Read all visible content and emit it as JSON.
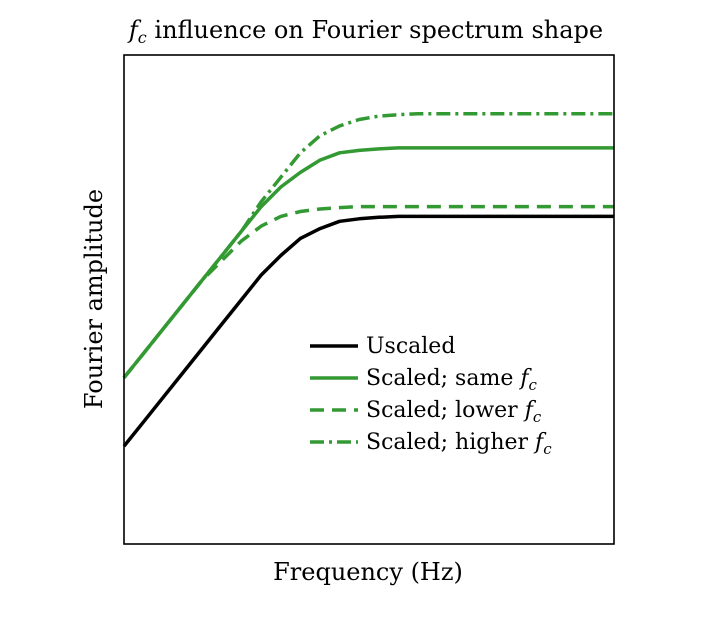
{
  "colors": {
    "black": "#000000",
    "green": "#339933"
  },
  "chart_data": {
    "type": "line",
    "title_symbol": "f",
    "title_subscript": "c",
    "title_rest": " influence on Fourier spectrum shape",
    "xlabel": "Frequency (Hz)",
    "ylabel": "Fourier amplitude",
    "x_ticks_shown": false,
    "y_ticks_shown": false,
    "grid": false,
    "legend_position": "center-right",
    "x": [
      0,
      0.04,
      0.08,
      0.12,
      0.16,
      0.2,
      0.24,
      0.28,
      0.32,
      0.36,
      0.4,
      0.44,
      0.48,
      0.52,
      0.56,
      0.6,
      0.64,
      0.68,
      0.72,
      0.76,
      0.8,
      0.84,
      0.88,
      0.92,
      0.96,
      1.0
    ],
    "series": [
      {
        "name": "Uscaled",
        "name_symbol": "",
        "name_subscript": "",
        "color": "#000000",
        "dash": "solid",
        "values": [
          0.2,
          0.25,
          0.3,
          0.35,
          0.4,
          0.45,
          0.5,
          0.55,
          0.59,
          0.625,
          0.645,
          0.66,
          0.665,
          0.668,
          0.67,
          0.67,
          0.67,
          0.67,
          0.67,
          0.67,
          0.67,
          0.67,
          0.67,
          0.67,
          0.67,
          0.67
        ]
      },
      {
        "name": "Scaled; same ",
        "name_symbol": "f",
        "name_subscript": "c",
        "color": "#339933",
        "dash": "solid",
        "values": [
          0.34,
          0.39,
          0.44,
          0.49,
          0.54,
          0.59,
          0.64,
          0.69,
          0.73,
          0.76,
          0.785,
          0.8,
          0.805,
          0.808,
          0.81,
          0.81,
          0.81,
          0.81,
          0.81,
          0.81,
          0.81,
          0.81,
          0.81,
          0.81,
          0.81,
          0.81
        ]
      },
      {
        "name": "Scaled; lower ",
        "name_symbol": "f",
        "name_subscript": "c",
        "color": "#339933",
        "dash": "dashed",
        "values": [
          0.34,
          0.39,
          0.44,
          0.49,
          0.54,
          0.58,
          0.62,
          0.65,
          0.67,
          0.68,
          0.685,
          0.688,
          0.69,
          0.69,
          0.69,
          0.69,
          0.69,
          0.69,
          0.69,
          0.69,
          0.69,
          0.69,
          0.69,
          0.69,
          0.69,
          0.69
        ]
      },
      {
        "name": "Scaled; higher ",
        "name_symbol": "f",
        "name_subscript": "c",
        "color": "#339933",
        "dash": "dashdot",
        "values": [
          0.34,
          0.39,
          0.44,
          0.49,
          0.54,
          0.59,
          0.64,
          0.7,
          0.75,
          0.8,
          0.835,
          0.855,
          0.868,
          0.875,
          0.878,
          0.88,
          0.88,
          0.88,
          0.88,
          0.88,
          0.88,
          0.88,
          0.88,
          0.88,
          0.88,
          0.88
        ]
      }
    ],
    "xlim": [
      0,
      1
    ],
    "ylim": [
      0,
      1
    ]
  }
}
